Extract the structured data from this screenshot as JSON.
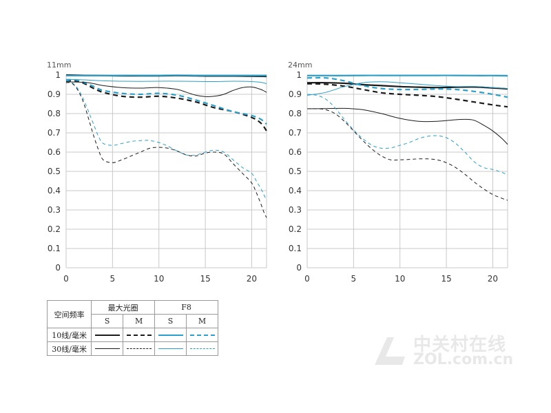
{
  "chart_data": [
    {
      "type": "line",
      "title": "11mm",
      "xlim": [
        0,
        21.6
      ],
      "ylim": [
        0,
        1
      ],
      "xticks": [
        "0",
        "5",
        "10",
        "15",
        "20"
      ],
      "yticks": [
        "0",
        "0.1",
        "0.2",
        "0.3",
        "0.4",
        "0.5",
        "0.6",
        "0.7",
        "0.8",
        "0.9",
        "1"
      ],
      "grid": true,
      "series": [
        {
          "key": "wide_10_S",
          "x": [
            0,
            2,
            4,
            6,
            8,
            10,
            12,
            14,
            16,
            18,
            20,
            21.6
          ],
          "values": [
            1.0,
            0.998,
            0.997,
            0.996,
            0.996,
            0.996,
            0.997,
            0.996,
            0.995,
            0.995,
            0.994,
            0.993
          ]
        },
        {
          "key": "wide_10_M",
          "x": [
            0,
            1,
            2,
            3,
            4,
            6,
            8,
            10,
            12,
            14,
            16,
            18,
            20,
            21,
            21.6
          ],
          "values": [
            0.97,
            0.97,
            0.955,
            0.93,
            0.91,
            0.89,
            0.885,
            0.89,
            0.88,
            0.86,
            0.83,
            0.81,
            0.78,
            0.75,
            0.71
          ]
        },
        {
          "key": "f8_10_S",
          "x": [
            0,
            2,
            4,
            6,
            8,
            10,
            12,
            14,
            16,
            18,
            20,
            21.6
          ],
          "values": [
            0.997,
            0.997,
            0.997,
            0.998,
            0.998,
            0.998,
            0.999,
            0.998,
            0.998,
            0.998,
            0.998,
            0.998
          ]
        },
        {
          "key": "f8_10_M",
          "x": [
            0,
            1,
            2,
            3,
            4,
            6,
            8,
            10,
            12,
            14,
            16,
            18,
            20,
            21,
            21.6
          ],
          "values": [
            0.975,
            0.975,
            0.96,
            0.94,
            0.92,
            0.905,
            0.9,
            0.905,
            0.895,
            0.87,
            0.84,
            0.81,
            0.79,
            0.77,
            0.745
          ]
        },
        {
          "key": "wide_30_S",
          "x": [
            0,
            2,
            3,
            4,
            6,
            8,
            10,
            12,
            13,
            14,
            15,
            16,
            17,
            18,
            19,
            20,
            21,
            21.6
          ],
          "values": [
            0.965,
            0.962,
            0.955,
            0.945,
            0.935,
            0.932,
            0.935,
            0.925,
            0.91,
            0.895,
            0.888,
            0.89,
            0.9,
            0.92,
            0.935,
            0.938,
            0.925,
            0.91
          ]
        },
        {
          "key": "wide_30_M",
          "x": [
            0,
            0.5,
            1,
            1.5,
            2,
            2.5,
            3,
            3.5,
            4,
            5,
            6,
            7,
            8,
            9,
            10,
            11,
            12,
            13,
            14,
            15,
            16,
            17,
            18,
            19,
            20,
            20.5,
            21,
            21.3,
            21.6
          ],
          "values": [
            0.96,
            0.96,
            0.94,
            0.9,
            0.84,
            0.76,
            0.68,
            0.61,
            0.56,
            0.545,
            0.56,
            0.58,
            0.6,
            0.62,
            0.625,
            0.62,
            0.605,
            0.585,
            0.58,
            0.595,
            0.6,
            0.59,
            0.54,
            0.49,
            0.44,
            0.39,
            0.33,
            0.29,
            0.26
          ]
        },
        {
          "key": "f8_30_S",
          "x": [
            0,
            2,
            4,
            6,
            8,
            10,
            12,
            14,
            16,
            18,
            20,
            21,
            21.6
          ],
          "values": [
            0.978,
            0.975,
            0.97,
            0.968,
            0.967,
            0.968,
            0.968,
            0.967,
            0.966,
            0.968,
            0.966,
            0.962,
            0.955
          ]
        },
        {
          "key": "f8_30_M",
          "x": [
            0,
            0.5,
            1,
            1.5,
            2,
            2.5,
            3,
            3.5,
            4,
            5,
            6,
            7,
            8,
            9,
            10,
            11,
            12,
            13,
            14,
            15,
            16,
            17,
            18,
            19,
            20,
            20.5,
            21,
            21.3,
            21.6
          ],
          "values": [
            0.97,
            0.965,
            0.945,
            0.91,
            0.86,
            0.8,
            0.74,
            0.68,
            0.645,
            0.635,
            0.645,
            0.655,
            0.66,
            0.66,
            0.65,
            0.63,
            0.605,
            0.585,
            0.585,
            0.6,
            0.61,
            0.6,
            0.56,
            0.52,
            0.49,
            0.45,
            0.41,
            0.38,
            0.35
          ]
        }
      ]
    },
    {
      "type": "line",
      "title": "24mm",
      "xlim": [
        0,
        21.6
      ],
      "ylim": [
        0,
        1
      ],
      "xticks": [
        "0",
        "5",
        "10",
        "15",
        "20"
      ],
      "yticks": [
        "0",
        "0.1",
        "0.2",
        "0.3",
        "0.4",
        "0.5",
        "0.6",
        "0.7",
        "0.8",
        "0.9",
        "1"
      ],
      "grid": true,
      "series": [
        {
          "key": "wide_10_S",
          "x": [
            0,
            2,
            4,
            6,
            8,
            10,
            12,
            14,
            16,
            18,
            20,
            21.6
          ],
          "values": [
            0.96,
            0.96,
            0.957,
            0.95,
            0.945,
            0.94,
            0.937,
            0.935,
            0.937,
            0.938,
            0.933,
            0.928
          ]
        },
        {
          "key": "wide_10_M",
          "x": [
            0,
            2,
            4,
            6,
            8,
            10,
            12,
            14,
            16,
            18,
            20,
            21.6
          ],
          "values": [
            0.955,
            0.952,
            0.942,
            0.925,
            0.908,
            0.9,
            0.895,
            0.888,
            0.875,
            0.86,
            0.845,
            0.835
          ]
        },
        {
          "key": "f8_10_S",
          "x": [
            0,
            2,
            4,
            6,
            8,
            10,
            12,
            14,
            16,
            18,
            20,
            21.6
          ],
          "values": [
            0.997,
            0.997,
            0.997,
            0.998,
            0.998,
            0.998,
            0.998,
            0.998,
            0.998,
            0.997,
            0.997,
            0.996
          ]
        },
        {
          "key": "f8_10_M",
          "x": [
            0,
            2,
            4,
            6,
            8,
            10,
            12,
            14,
            16,
            18,
            20,
            21.6
          ],
          "values": [
            0.985,
            0.985,
            0.97,
            0.945,
            0.93,
            0.925,
            0.925,
            0.928,
            0.925,
            0.915,
            0.9,
            0.885
          ]
        },
        {
          "key": "wide_30_S",
          "x": [
            0,
            2,
            4,
            6,
            8,
            10,
            12,
            14,
            16,
            17,
            18,
            19,
            20,
            21,
            21.6
          ],
          "values": [
            0.825,
            0.826,
            0.827,
            0.82,
            0.8,
            0.775,
            0.76,
            0.76,
            0.768,
            0.77,
            0.765,
            0.74,
            0.71,
            0.67,
            0.64
          ]
        },
        {
          "key": "wide_30_M",
          "x": [
            0,
            1,
            2,
            3,
            4,
            5,
            6,
            7,
            8,
            9,
            10,
            11,
            12,
            13,
            14,
            15,
            16,
            17,
            18,
            19,
            20,
            21,
            21.6
          ],
          "values": [
            0.825,
            0.825,
            0.82,
            0.8,
            0.76,
            0.71,
            0.66,
            0.615,
            0.58,
            0.56,
            0.56,
            0.562,
            0.565,
            0.565,
            0.56,
            0.545,
            0.52,
            0.485,
            0.445,
            0.41,
            0.38,
            0.36,
            0.35
          ]
        },
        {
          "key": "f8_30_S",
          "x": [
            0,
            2,
            4,
            6,
            8,
            10,
            12,
            14,
            16,
            18,
            20,
            21.6
          ],
          "values": [
            0.895,
            0.91,
            0.94,
            0.96,
            0.965,
            0.96,
            0.953,
            0.945,
            0.94,
            0.94,
            0.935,
            0.93
          ]
        },
        {
          "key": "f8_30_M",
          "x": [
            0,
            1,
            2,
            3,
            4,
            5,
            6,
            7,
            8,
            9,
            10,
            11,
            12,
            13,
            14,
            15,
            16,
            17,
            18,
            19,
            20,
            21,
            21.6
          ],
          "values": [
            0.9,
            0.895,
            0.875,
            0.83,
            0.77,
            0.715,
            0.67,
            0.635,
            0.62,
            0.622,
            0.635,
            0.65,
            0.67,
            0.682,
            0.685,
            0.675,
            0.645,
            0.6,
            0.55,
            0.52,
            0.51,
            0.495,
            0.48
          ]
        }
      ]
    }
  ],
  "styles": {
    "wide_10_S": {
      "color": "#1a1a1a",
      "width": 2.2,
      "dash": ""
    },
    "wide_10_M": {
      "color": "#1a1a1a",
      "width": 2.2,
      "dash": "7,5"
    },
    "f8_10_S": {
      "color": "#2a9fc9",
      "width": 2.2,
      "dash": ""
    },
    "f8_10_M": {
      "color": "#2a9fc9",
      "width": 2.2,
      "dash": "7,5"
    },
    "wide_30_S": {
      "color": "#1a1a1a",
      "width": 1.0,
      "dash": ""
    },
    "wide_30_M": {
      "color": "#1a1a1a",
      "width": 1.0,
      "dash": "5,4"
    },
    "f8_30_S": {
      "color": "#2a9fc9",
      "width": 1.0,
      "dash": ""
    },
    "f8_30_M": {
      "color": "#2a9fc9",
      "width": 1.0,
      "dash": "5,4"
    }
  },
  "legend": {
    "header_label": "空间频率",
    "group_wide": "最大光圈",
    "group_f8": "F8",
    "col_s": "S",
    "col_m": "M",
    "row_10": "10线/毫米",
    "row_30": "30线/毫米"
  },
  "watermark": {
    "cn": "中关村在线",
    "en": "ZOL.com.cn"
  }
}
